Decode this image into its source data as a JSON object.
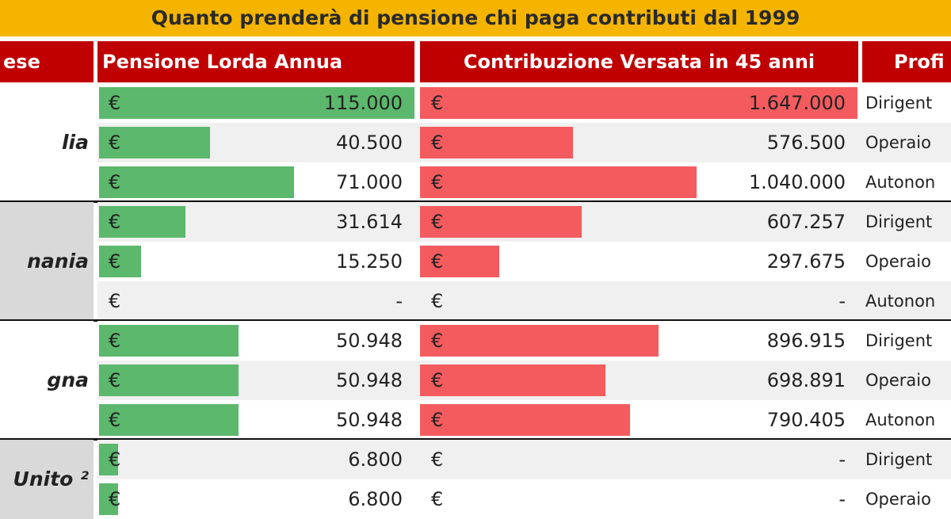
{
  "title": "Quanto prenderà di pensione chi paga contributi dal 1999",
  "header": [
    "ese",
    "Pensione Lorda Annua",
    "Contribuzione Versata in 45 anni",
    "Profi"
  ],
  "currency": "€",
  "groups": [
    {
      "country": "lia",
      "rows": [
        {
          "pension": 115000,
          "pension_label": "115.000",
          "contribution": 1647000,
          "contribution_label": "1.647.000",
          "profile": "Dirigent"
        },
        {
          "pension": 40500,
          "pension_label": "40.500",
          "contribution": 576500,
          "contribution_label": "576.500",
          "profile": "Operaio"
        },
        {
          "pension": 71000,
          "pension_label": "71.000",
          "contribution": 1040000,
          "contribution_label": "1.040.000",
          "profile": "Autonon"
        }
      ]
    },
    {
      "country": "nania",
      "rows": [
        {
          "pension": 31614,
          "pension_label": "31.614",
          "contribution": 607257,
          "contribution_label": "607.257",
          "profile": "Dirigent"
        },
        {
          "pension": 15250,
          "pension_label": "15.250",
          "contribution": 297675,
          "contribution_label": "297.675",
          "profile": "Operaio"
        },
        {
          "pension": null,
          "pension_label": "-",
          "contribution": null,
          "contribution_label": "-",
          "profile": "Autonon"
        }
      ]
    },
    {
      "country": "gna",
      "rows": [
        {
          "pension": 50948,
          "pension_label": "50.948",
          "contribution": 896915,
          "contribution_label": "896.915",
          "profile": "Dirigent"
        },
        {
          "pension": 50948,
          "pension_label": "50.948",
          "contribution": 698891,
          "contribution_label": "698.891",
          "profile": "Operaio"
        },
        {
          "pension": 50948,
          "pension_label": "50.948",
          "contribution": 790405,
          "contribution_label": "790.405",
          "profile": "Autonon"
        }
      ]
    },
    {
      "country": "Unito ²",
      "rows": [
        {
          "pension": 6800,
          "pension_label": "6.800",
          "contribution": null,
          "contribution_label": "-",
          "profile": "Dirigent"
        },
        {
          "pension": 6800,
          "pension_label": "6.800",
          "contribution": null,
          "contribution_label": "-",
          "profile": "Operaio"
        }
      ]
    }
  ]
}
